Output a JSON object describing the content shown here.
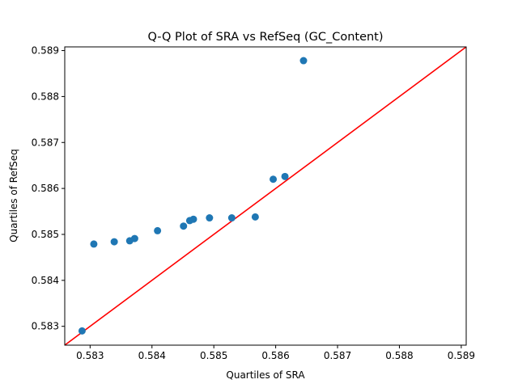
{
  "chart_data": {
    "type": "scatter",
    "title": "Q-Q Plot of SRA vs RefSeq (GC_Content)",
    "xlabel": "Quartiles of SRA",
    "ylabel": "Quartiles of RefSeq",
    "xlim": [
      0.58259,
      0.58908
    ],
    "ylim": [
      0.58259,
      0.58908
    ],
    "xticks": [
      "0.583",
      "0.584",
      "0.585",
      "0.586",
      "0.587",
      "0.588",
      "0.589"
    ],
    "yticks": [
      "0.583",
      "0.584",
      "0.585",
      "0.586",
      "0.587",
      "0.588",
      "0.589"
    ],
    "grid": false,
    "series": [
      {
        "marker_color": "#1f77b4",
        "points": [
          [
            0.58287,
            0.5829
          ],
          [
            0.58306,
            0.58479
          ],
          [
            0.58339,
            0.58484
          ],
          [
            0.58364,
            0.58486
          ],
          [
            0.58372,
            0.58491
          ],
          [
            0.58409,
            0.58508
          ],
          [
            0.58451,
            0.58518
          ],
          [
            0.58461,
            0.5853
          ],
          [
            0.58467,
            0.58533
          ],
          [
            0.58493,
            0.58536
          ],
          [
            0.58529,
            0.58536
          ],
          [
            0.58567,
            0.58538
          ],
          [
            0.58596,
            0.5862
          ],
          [
            0.58615,
            0.58626
          ],
          [
            0.58645,
            0.58878
          ]
        ]
      }
    ],
    "reference_line": {
      "color": "#ff0000",
      "from": [
        0.58259,
        0.58259
      ],
      "to": [
        0.58908,
        0.58908
      ]
    }
  }
}
